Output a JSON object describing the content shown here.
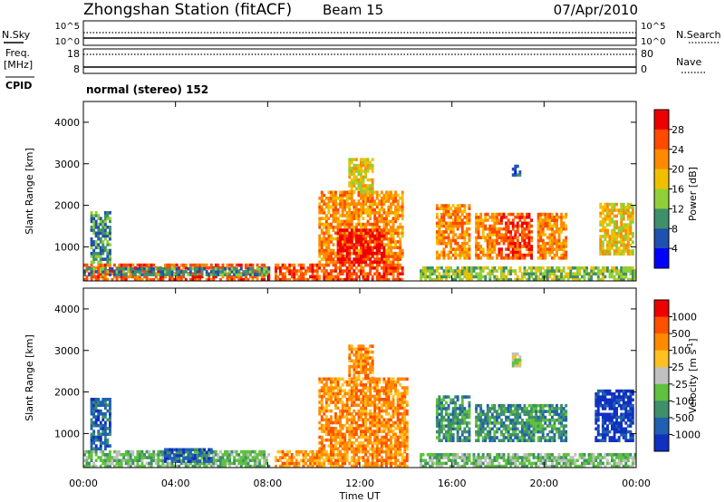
{
  "header": {
    "station": "Zhongshan Station (fitACF)",
    "beam": "Beam 15",
    "date": "07/Apr/2010"
  },
  "strips": {
    "nsky_label": "N.Sky",
    "nsearch_label": "N.Search",
    "noise_ticks_left": [
      "10^5",
      "10^0"
    ],
    "noise_ticks_right": [
      "10^5",
      "10^0"
    ],
    "freq_label_1": "Freq.",
    "freq_label_2": "[MHz]",
    "freq_ticks": [
      "18",
      "8"
    ],
    "nave_label": "Nave",
    "nave_ticks": [
      "80",
      "0"
    ],
    "cpid_label": "CPID",
    "cpid_text": "normal (stereo) 152"
  },
  "chart_data": [
    {
      "type": "heatmap",
      "name": "power-panel",
      "ylabel": "Slant Range [km]",
      "xlabel": "",
      "ylim": [
        180,
        4500
      ],
      "yticks": [
        "1000",
        "2000",
        "3000",
        "4000"
      ],
      "xlim_hours": [
        0,
        24
      ],
      "colorbar_label": "Power [dB]",
      "colorbar_ticks": [
        "4",
        "8",
        "12",
        "16",
        "20",
        "24",
        "28"
      ],
      "colorbar_colors": [
        "#0000ff",
        "#2050b0",
        "#3f8f6a",
        "#8fcf3a",
        "#f0c000",
        "#ff8a00",
        "#ff4a00",
        "#ee0000"
      ],
      "regions": [
        {
          "t0": 0.0,
          "t1": 8.0,
          "r0": 180,
          "r1": 600,
          "level": 6
        },
        {
          "t0": 0.3,
          "t1": 1.2,
          "r0": 600,
          "r1": 1800,
          "level": 2
        },
        {
          "t0": 0.0,
          "t1": 8.0,
          "r0": 300,
          "r1": 450,
          "level": 2
        },
        {
          "t0": 8.3,
          "t1": 13.8,
          "r0": 180,
          "r1": 600,
          "level": 6
        },
        {
          "t0": 10.2,
          "t1": 13.8,
          "r0": 600,
          "r1": 2300,
          "level": 5
        },
        {
          "t0": 11.0,
          "t1": 13.0,
          "r0": 600,
          "r1": 1400,
          "level": 7
        },
        {
          "t0": 11.5,
          "t1": 12.5,
          "r0": 2300,
          "r1": 3100,
          "level": 4
        },
        {
          "t0": 14.6,
          "t1": 24.0,
          "r0": 180,
          "r1": 500,
          "level": 3
        },
        {
          "t0": 15.3,
          "t1": 16.8,
          "r0": 700,
          "r1": 2000,
          "level": 5
        },
        {
          "t0": 17.0,
          "t1": 18.0,
          "r0": 700,
          "r1": 1800,
          "level": 5
        },
        {
          "t0": 18.0,
          "t1": 19.5,
          "r0": 700,
          "r1": 1800,
          "level": 6
        },
        {
          "t0": 19.7,
          "t1": 21.0,
          "r0": 700,
          "r1": 1800,
          "level": 5
        },
        {
          "t0": 22.4,
          "t1": 23.9,
          "r0": 800,
          "r1": 2000,
          "level": 4
        },
        {
          "t0": 18.6,
          "t1": 19.0,
          "r0": 2700,
          "r1": 2950,
          "level": 1
        }
      ]
    },
    {
      "type": "heatmap",
      "name": "velocity-panel",
      "ylabel": "Slant Range [km]",
      "xlabel": "Time UT",
      "ylim": [
        180,
        4500
      ],
      "yticks": [
        "1000",
        "2000",
        "3000",
        "4000"
      ],
      "xticks": [
        "00:00",
        "04:00",
        "08:00",
        "12:00",
        "16:00",
        "20:00",
        "00:00"
      ],
      "xlim_hours": [
        0,
        24
      ],
      "colorbar_label": "Velocity [m s",
      "colorbar_label_sup": "-1",
      "colorbar_label_end": "]",
      "colorbar_ticks": [
        "1000",
        "500",
        "100",
        "25",
        "-25",
        "-100",
        "-500",
        "-1000"
      ],
      "colorbar_colors": [
        "#1030c0",
        "#2060b0",
        "#3f8f6a",
        "#60c040",
        "#c0c0c0",
        "#ffc020",
        "#ff8a00",
        "#ff5000",
        "#ee0000"
      ],
      "regions": [
        {
          "t0": 0.0,
          "t1": 8.0,
          "r0": 180,
          "r1": 550,
          "level": 3
        },
        {
          "t0": 0.3,
          "t1": 1.2,
          "r0": 600,
          "r1": 1800,
          "level": 1
        },
        {
          "t0": 3.5,
          "t1": 5.5,
          "r0": 300,
          "r1": 650,
          "level": 1
        },
        {
          "t0": 8.3,
          "t1": 14.0,
          "r0": 180,
          "r1": 600,
          "level": 6
        },
        {
          "t0": 10.2,
          "t1": 14.0,
          "r0": 600,
          "r1": 2300,
          "level": 6
        },
        {
          "t0": 11.5,
          "t1": 12.5,
          "r0": 2300,
          "r1": 3100,
          "level": 6
        },
        {
          "t0": 14.6,
          "t1": 24.0,
          "r0": 180,
          "r1": 500,
          "level": 3
        },
        {
          "t0": 15.3,
          "t1": 16.8,
          "r0": 800,
          "r1": 1900,
          "level": 2
        },
        {
          "t0": 17.0,
          "t1": 21.0,
          "r0": 800,
          "r1": 1700,
          "level": 2
        },
        {
          "t0": 22.2,
          "t1": 23.9,
          "r0": 800,
          "r1": 2000,
          "level": 0
        },
        {
          "t0": 18.6,
          "t1": 19.0,
          "r0": 2600,
          "r1": 2900,
          "level": 4
        }
      ]
    }
  ]
}
